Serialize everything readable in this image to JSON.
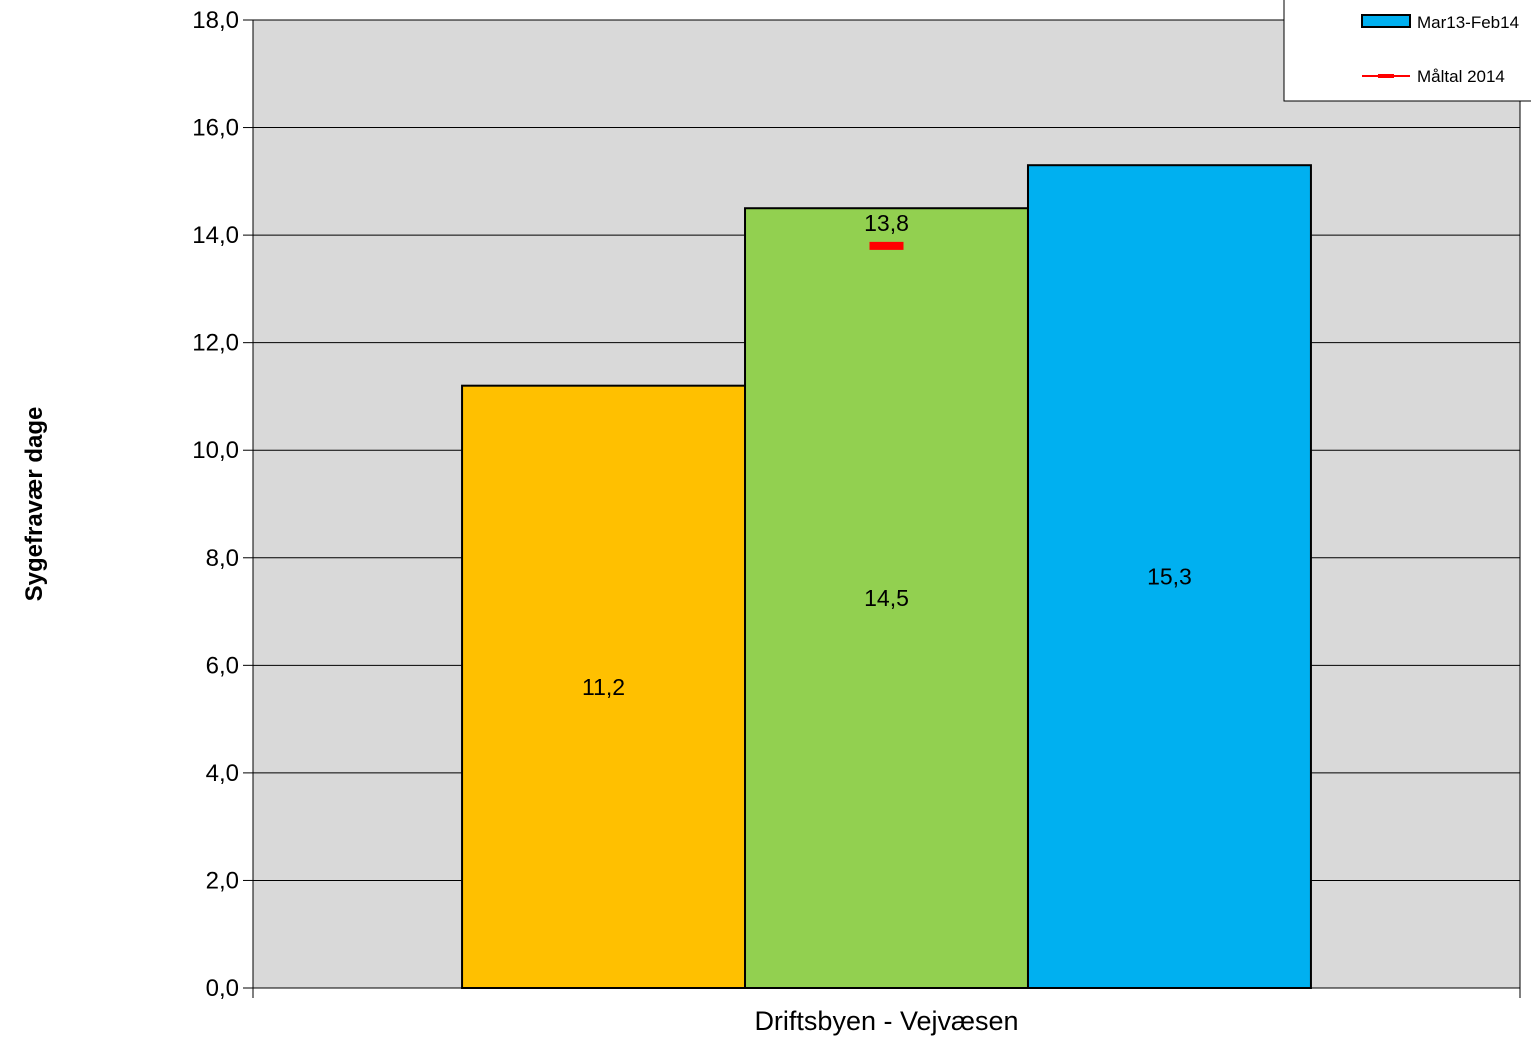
{
  "chart_data": {
    "type": "bar",
    "title": "",
    "ylabel": "Sygefravær dage",
    "xlabel": "",
    "categories": [
      "Driftsbyen - Vejvæsen"
    ],
    "ylim": [
      0,
      18
    ],
    "ytick_step": 2,
    "ytick_labels": [
      "0,0",
      "2,0",
      "4,0",
      "6,0",
      "8,0",
      "10,0",
      "12,0",
      "14,0",
      "16,0",
      "18,0"
    ],
    "grid": true,
    "legend_position": "top-right",
    "series": [
      {
        "values": [
          11.2
        ],
        "label": "11,2",
        "color": "#FFC000"
      },
      {
        "values": [
          14.5
        ],
        "label": "14,5",
        "color": "#92D050"
      },
      {
        "name": "Mar13-Feb14",
        "values": [
          15.3
        ],
        "label": "15,3",
        "color": "#00B0F0"
      }
    ],
    "target": {
      "name": "Måltal 2014",
      "value": 13.8,
      "label": "13,8",
      "color": "#FF0000",
      "series_index": 1
    },
    "legend": [
      {
        "label": "Mar13-Feb14",
        "kind": "bar",
        "color": "#00B0F0"
      },
      {
        "label": "Måltal 2014",
        "kind": "line",
        "color": "#FF0000"
      }
    ],
    "colors": {
      "plot_background": "#D9D9D9",
      "grid": "#000000",
      "bar_border": "#000000"
    }
  }
}
